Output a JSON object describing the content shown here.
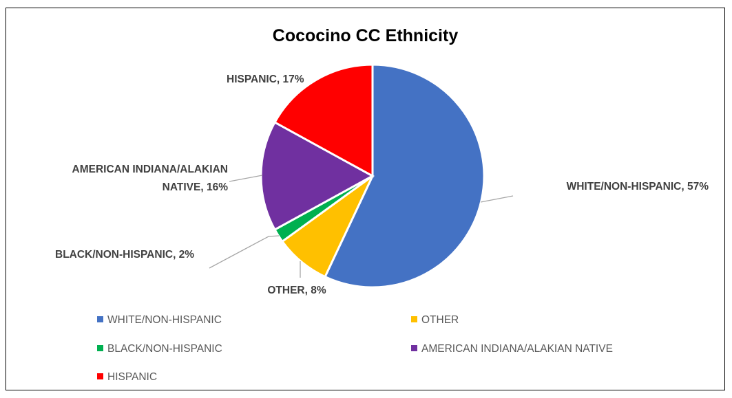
{
  "chart_data": {
    "type": "pie",
    "title": "Cococino CC Ethnicity",
    "slices": [
      {
        "name": "WHITE/NON-HISPANIC",
        "value": 57,
        "label": "WHITE/NON-HISPANIC, 57%",
        "color": "#4472C4"
      },
      {
        "name": "OTHER",
        "value": 8,
        "label": "OTHER, 8%",
        "color": "#FFC000"
      },
      {
        "name": "BLACK/NON-HISPANIC",
        "value": 2,
        "label": "BLACK/NON-HISPANIC, 2%",
        "color": "#00B050"
      },
      {
        "name": "AMERICAN INDIANA/ALAKIAN NATIVE",
        "value": 16,
        "label_lines": [
          "AMERICAN INDIANA/ALAKIAN",
          "NATIVE, 16%"
        ],
        "color": "#7030A0"
      },
      {
        "name": "HISPANIC",
        "value": 17,
        "label": "HISPANIC, 17%",
        "color": "#FF0000"
      }
    ],
    "legend": [
      {
        "name": "WHITE/NON-HISPANIC",
        "color": "#4472C4"
      },
      {
        "name": "OTHER",
        "color": "#FFC000"
      },
      {
        "name": "BLACK/NON-HISPANIC",
        "color": "#00B050"
      },
      {
        "name": "AMERICAN INDIANA/ALAKIAN NATIVE",
        "color": "#7030A0"
      },
      {
        "name": "HISPANIC",
        "color": "#FF0000"
      }
    ],
    "legend_position": "bottom"
  }
}
